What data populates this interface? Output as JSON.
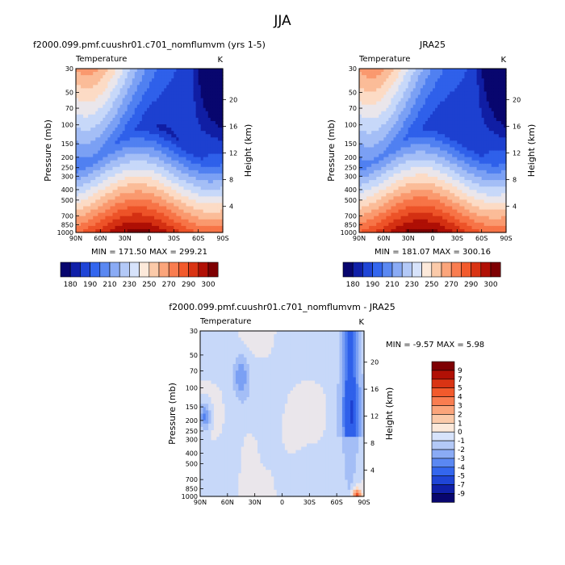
{
  "page_title": "JJA",
  "colors": {
    "cold_scale": [
      "#08066e",
      "#1020a8",
      "#1f45d6",
      "#3366ee",
      "#5a88f2",
      "#8aabf5",
      "#b3c9f7",
      "#d7e3fb"
    ],
    "warm_scale": [
      "#fce9da",
      "#fbcaa9",
      "#fba57b",
      "#f97d50",
      "#f25a2c",
      "#d93414",
      "#b11005",
      "#7e0002"
    ]
  },
  "chart_data": [
    {
      "type": "heatmap",
      "title": "f2000.099.pmf.cuushr01.c701_nomflumvm (yrs 1-5)",
      "variable": "Temperature",
      "units": "K",
      "ylabel": "Pressure (mb)",
      "ylabel_right": "Height (km)",
      "x_ticks": [
        "90N",
        "60N",
        "30N",
        "0",
        "30S",
        "60S",
        "90S"
      ],
      "y_ticks": [
        "30",
        "50",
        "70",
        "100",
        "150",
        "200",
        "250",
        "300",
        "400",
        "500",
        "700",
        "850",
        "1000"
      ],
      "height_ticks": [
        "4",
        "8",
        "12",
        "16",
        "20"
      ],
      "stats": "MIN = 171.50  MAX = 299.21",
      "min": 171.5,
      "max": 299.21,
      "colorbar_labels": [
        "180",
        "190",
        "210",
        "230",
        "250",
        "270",
        "290",
        "300"
      ],
      "ylim": [
        1000,
        30
      ]
    },
    {
      "type": "heatmap",
      "title": "JRA25",
      "variable": "Temperature",
      "units": "K",
      "ylabel": "Pressure (mb)",
      "ylabel_right": "Height (km)",
      "x_ticks": [
        "90N",
        "60N",
        "30N",
        "0",
        "30S",
        "60S",
        "90S"
      ],
      "y_ticks": [
        "30",
        "50",
        "70",
        "100",
        "150",
        "200",
        "250",
        "300",
        "400",
        "500",
        "700",
        "850",
        "1000"
      ],
      "height_ticks": [
        "4",
        "8",
        "12",
        "16",
        "20"
      ],
      "stats": "MIN = 181.07  MAX = 300.16",
      "min": 181.07,
      "max": 300.16,
      "colorbar_labels": [
        "180",
        "190",
        "210",
        "230",
        "250",
        "270",
        "290",
        "300"
      ],
      "ylim": [
        1000,
        30
      ]
    },
    {
      "type": "heatmap",
      "title": "f2000.099.pmf.cuushr01.c701_nomflumvm - JRA25",
      "variable": "Temperature",
      "units": "K",
      "ylabel": "Pressure (mb)",
      "ylabel_right": "Height (km)",
      "x_ticks": [
        "90N",
        "60N",
        "30N",
        "0",
        "30S",
        "60S",
        "90S"
      ],
      "y_ticks": [
        "30",
        "50",
        "70",
        "100",
        "150",
        "200",
        "250",
        "300",
        "400",
        "500",
        "700",
        "850",
        "1000"
      ],
      "height_ticks": [
        "4",
        "8",
        "12",
        "16",
        "20"
      ],
      "stats": "MIN = -9.57   MAX =  5.98",
      "min": -9.57,
      "max": 5.98,
      "colorbar_labels": [
        "9",
        "7",
        "5",
        "4",
        "3",
        "2",
        "1",
        "0",
        "-1",
        "-2",
        "-3",
        "-4",
        "-5",
        "-7",
        "-9"
      ],
      "ylim": [
        1000,
        30
      ]
    }
  ]
}
